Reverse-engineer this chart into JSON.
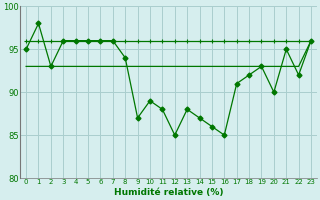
{
  "x": [
    0,
    1,
    2,
    3,
    4,
    5,
    6,
    7,
    8,
    9,
    10,
    11,
    12,
    13,
    14,
    15,
    16,
    17,
    18,
    19,
    20,
    21,
    22,
    23
  ],
  "y_main": [
    95,
    98,
    93,
    96,
    96,
    96,
    96,
    96,
    94,
    87,
    89,
    88,
    85,
    88,
    87,
    86,
    85,
    91,
    92,
    93,
    90,
    95,
    92,
    96
  ],
  "y_line2": [
    93,
    93,
    93,
    93,
    93,
    93,
    93,
    93,
    93,
    93,
    93,
    93,
    93,
    93,
    93,
    93,
    93,
    93,
    93,
    93,
    93,
    93,
    93,
    96
  ],
  "y_line3": [
    96,
    96,
    96,
    96,
    96,
    96,
    96,
    96,
    96,
    96,
    96,
    96,
    96,
    96,
    96,
    96,
    96,
    96,
    96,
    96,
    96,
    96,
    96,
    96
  ],
  "line_color": "#007700",
  "bg_color": "#d6eeee",
  "grid_color": "#aacece",
  "xlabel": "Humidité relative (%)",
  "ylim": [
    80,
    100
  ],
  "xlim": [
    -0.5,
    23.5
  ],
  "yticks": [
    80,
    85,
    90,
    95,
    100
  ],
  "xticks": [
    0,
    1,
    2,
    3,
    4,
    5,
    6,
    7,
    8,
    9,
    10,
    11,
    12,
    13,
    14,
    15,
    16,
    17,
    18,
    19,
    20,
    21,
    22,
    23
  ]
}
